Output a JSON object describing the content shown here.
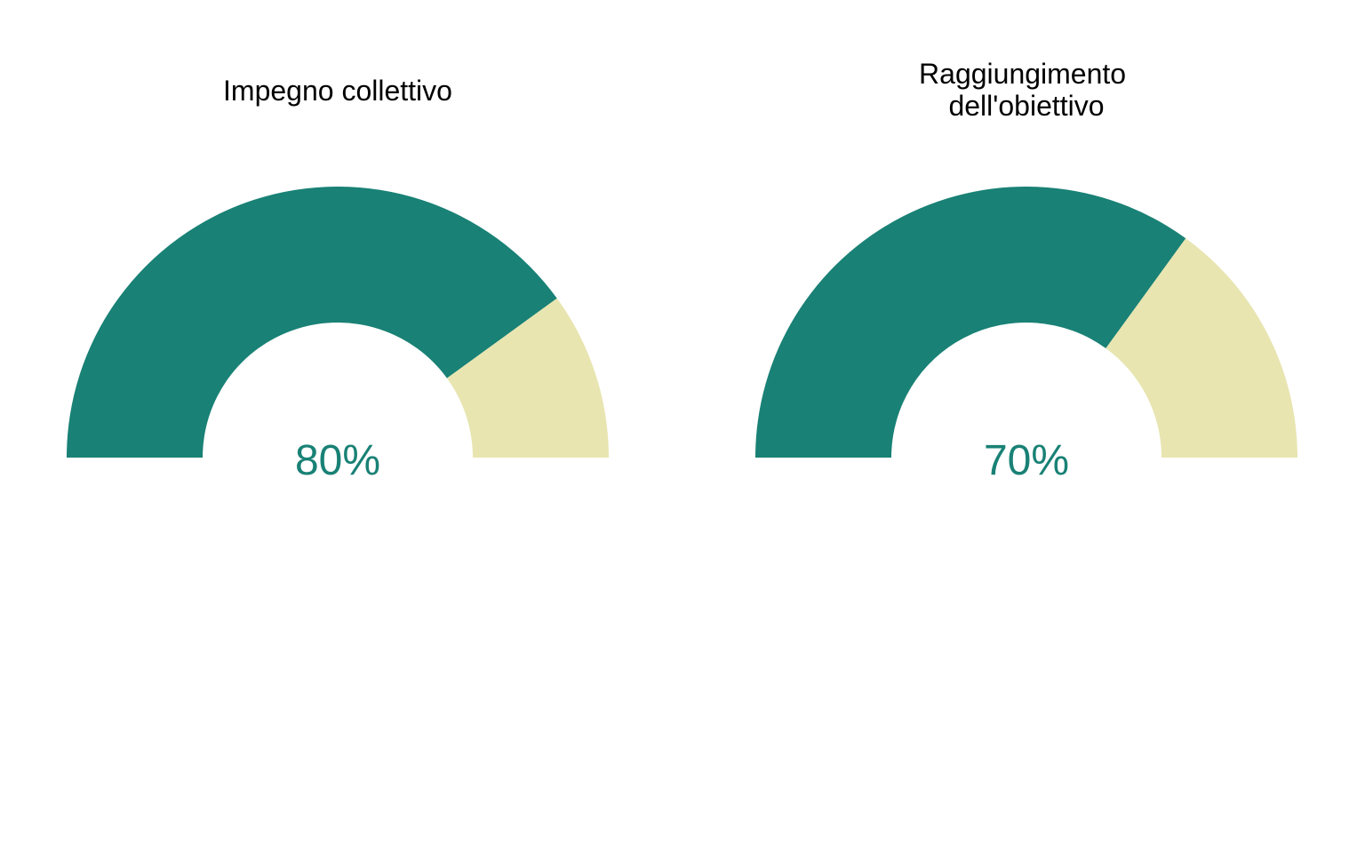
{
  "chart_data": [
    {
      "type": "gauge",
      "title": [
        "Impegno collettivo"
      ],
      "value": 80,
      "max": 100,
      "label": "80%",
      "filled_color": "#198175",
      "remaining_color": "#E8E5B1"
    },
    {
      "type": "gauge",
      "title": [
        "Raggiungimento",
        "dell'obiettivo"
      ],
      "value": 70,
      "max": 100,
      "label": "70%",
      "filled_color": "#198175",
      "remaining_color": "#E8E5B1"
    }
  ]
}
